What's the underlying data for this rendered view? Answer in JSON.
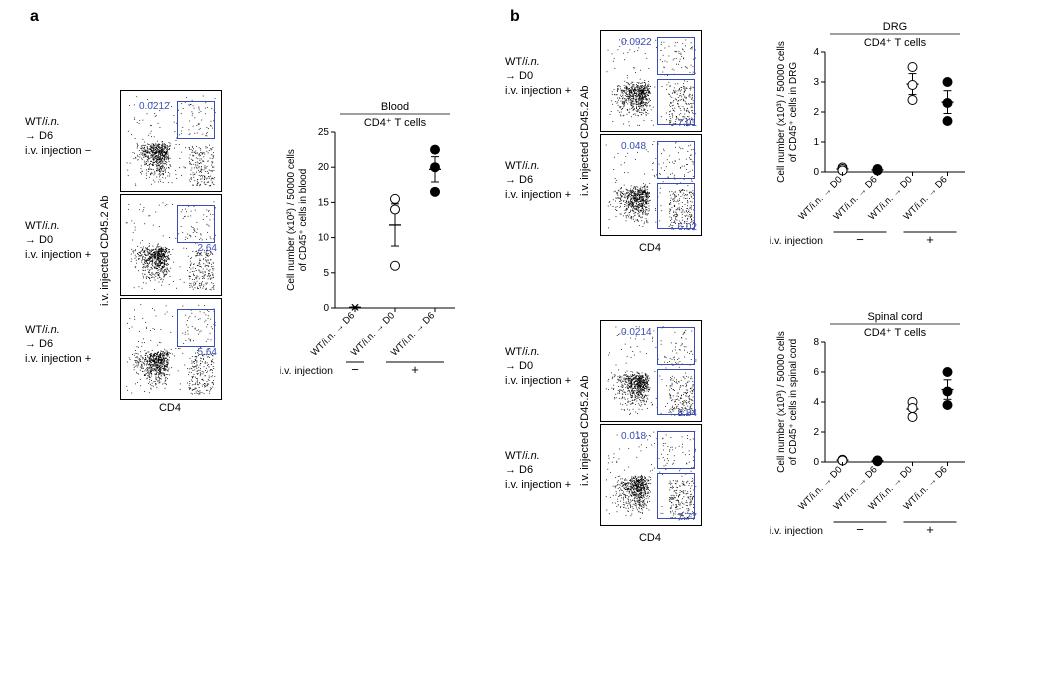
{
  "figure": {
    "panel_a_label": "a",
    "panel_b_label": "b",
    "colors": {
      "gate": "#3a4db5",
      "axis": "#000000",
      "marker_open_fill": "#ffffff",
      "marker_closed_fill": "#000000",
      "background": "#ffffff"
    },
    "fontsize": {
      "panel_label": 16,
      "body": 11,
      "gate_label": 10,
      "axis_tick": 10
    },
    "facs_axes": {
      "y_label": "i.v. injected CD45.2 Ab",
      "x_label": "CD4"
    },
    "iv_label": "i.v. injection",
    "panel_a": {
      "conditions": [
        {
          "lines": [
            "WT/i.n.",
            "→ D6",
            "i.v. injection −"
          ],
          "gate_pct": "0.0212",
          "gate_pos": "top"
        },
        {
          "lines": [
            "WT/i.n.",
            "→ D0",
            "i.v. injection +"
          ],
          "gate_pct": "2.64",
          "gate_pos": "right"
        },
        {
          "lines": [
            "WT/i.n.",
            "→ D6",
            "i.v. injection +"
          ],
          "gate_pct": "5.64",
          "gate_pos": "right"
        }
      ],
      "chart": {
        "title1": "Blood",
        "title2": "CD4⁺ T cells",
        "y_label": "Cell number (x10²) / 50000 cells\nof CD45⁺ cells in blood",
        "ylim": [
          0,
          25
        ],
        "yticks": [
          0,
          5,
          10,
          15,
          20,
          25
        ],
        "categories": [
          "WT/i.n. → D6",
          "WT/i.n. → D0",
          "WT/i.n. → D6"
        ],
        "iv_groups": [
          "−",
          "+"
        ],
        "series": [
          {
            "x": 0,
            "values": [
              0.1,
              0.1,
              0.1
            ],
            "marker": "x",
            "mean": 0.1,
            "sem": 0.05
          },
          {
            "x": 1,
            "values": [
              15.5,
              14.0,
              6.0
            ],
            "marker": "open",
            "mean": 11.8,
            "sem": 3.0
          },
          {
            "x": 2,
            "values": [
              22.5,
              20.0,
              16.5
            ],
            "marker": "closed",
            "mean": 19.7,
            "sem": 1.8
          }
        ]
      }
    },
    "panel_b": {
      "drg": {
        "conditions": [
          {
            "lines": [
              "WT/i.n.",
              "→ D0",
              "i.v. injection +"
            ],
            "top_pct": "0.0922",
            "bot_pct": "7.01"
          },
          {
            "lines": [
              "WT/i.n.",
              "→ D6",
              "i.v. injection +"
            ],
            "top_pct": "0.048",
            "bot_pct": "6.02"
          }
        ],
        "chart": {
          "title1": "DRG",
          "title2": "CD4⁺ T cells",
          "y_label": "Cell number (x10³) / 50000 cells\nof CD45⁺ cells in DRG",
          "ylim": [
            0,
            4.0
          ],
          "yticks": [
            0,
            1.0,
            2.0,
            3.0,
            4.0
          ],
          "categories": [
            "WT/i.n. → D0",
            "WT/i.n. → D6",
            "WT/i.n. → D0",
            "WT/i.n. → D6"
          ],
          "series": [
            {
              "x": 0,
              "values": [
                0.15,
                0.1,
                0.05
              ],
              "marker": "open",
              "mean": 0.1,
              "sem": 0.03
            },
            {
              "x": 1,
              "values": [
                0.1,
                0.05,
                0.05
              ],
              "marker": "closed",
              "mean": 0.07,
              "sem": 0.02
            },
            {
              "x": 2,
              "values": [
                3.5,
                2.9,
                2.4
              ],
              "marker": "open",
              "mean": 2.93,
              "sem": 0.35
            },
            {
              "x": 3,
              "values": [
                3.0,
                2.3,
                1.7
              ],
              "marker": "closed",
              "mean": 2.33,
              "sem": 0.38
            }
          ]
        }
      },
      "spinal": {
        "conditions": [
          {
            "lines": [
              "WT/i.n.",
              "→ D0",
              "i.v. injection +"
            ],
            "top_pct": "0.0214",
            "bot_pct": "8.84"
          },
          {
            "lines": [
              "WT/i.n.",
              "→ D6",
              "i.v. injection +"
            ],
            "top_pct": "0.018",
            "bot_pct": "7.77"
          }
        ],
        "chart": {
          "title1": "Spinal cord",
          "title2": "CD4⁺ T cells",
          "y_label": "Cell number (x10³) / 50000 cells\nof CD45⁺ cells in spinal cord",
          "ylim": [
            0,
            8.0
          ],
          "yticks": [
            0,
            2.0,
            4.0,
            6.0,
            8.0
          ],
          "categories": [
            "WT/i.n. → D0",
            "WT/i.n. → D6",
            "WT/i.n. → D0",
            "WT/i.n. → D6"
          ],
          "series": [
            {
              "x": 0,
              "values": [
                0.15,
                0.1,
                0.1
              ],
              "marker": "open",
              "mean": 0.12,
              "sem": 0.02
            },
            {
              "x": 1,
              "values": [
                0.1,
                0.1,
                0.05
              ],
              "marker": "closed",
              "mean": 0.08,
              "sem": 0.02
            },
            {
              "x": 2,
              "values": [
                4.0,
                3.6,
                3.0
              ],
              "marker": "open",
              "mean": 3.53,
              "sem": 0.3
            },
            {
              "x": 3,
              "values": [
                6.0,
                4.7,
                3.8
              ],
              "marker": "closed",
              "mean": 4.83,
              "sem": 0.65
            }
          ]
        }
      }
    }
  }
}
